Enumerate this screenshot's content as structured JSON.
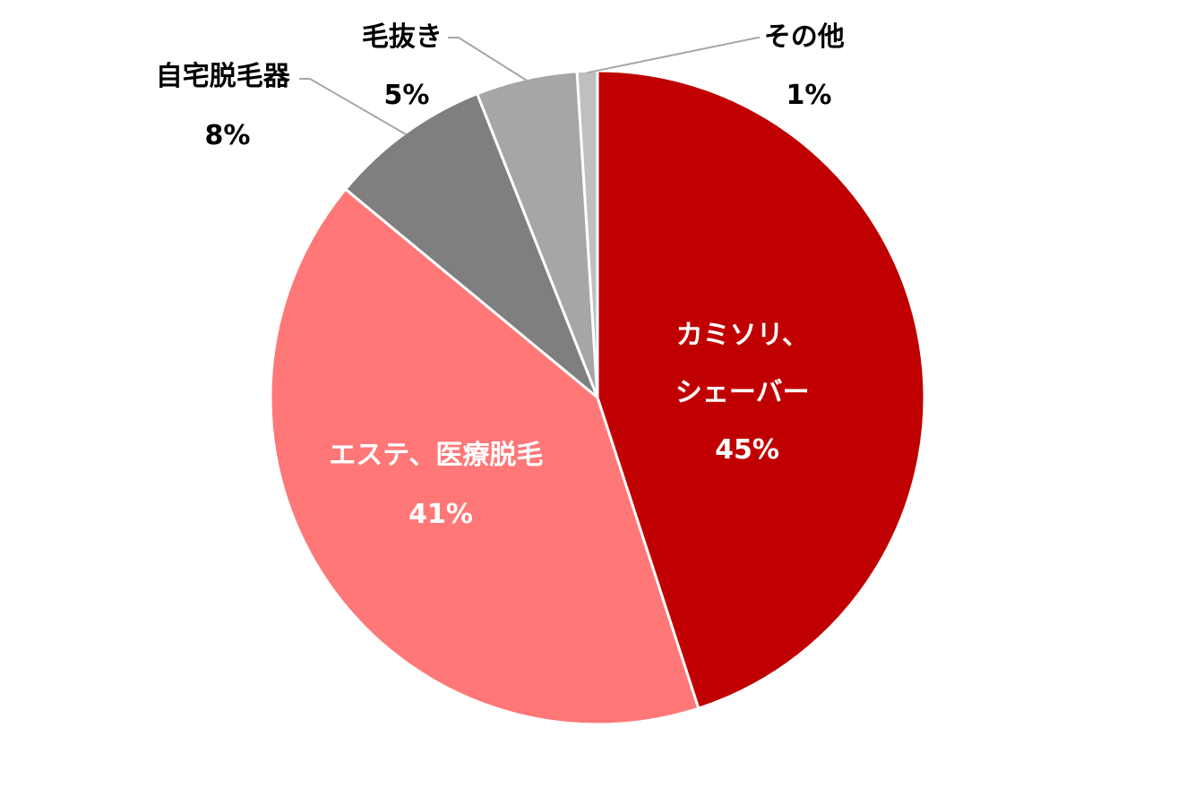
{
  "chart_data": {
    "type": "pie",
    "slices": [
      {
        "label": [
          "カミソリ、",
          "シェーバー"
        ],
        "value": 45,
        "value_label": "45%",
        "color": "#C00000"
      },
      {
        "label": [
          "エステ、医療脱毛"
        ],
        "value": 41,
        "value_label": "41%",
        "color": "#FF7777"
      },
      {
        "label": [
          "自宅脱毛器"
        ],
        "value": 8,
        "value_label": "8%",
        "color": "#7F7F7F"
      },
      {
        "label": [
          "毛抜き"
        ],
        "value": 5,
        "value_label": "5%",
        "color": "#A6A6A6"
      },
      {
        "label": [
          "その他"
        ],
        "value": 1,
        "value_label": "1%",
        "color": "#BFBFBF"
      }
    ],
    "start_angle": "12 o'clock",
    "direction": "clockwise",
    "legend": "none"
  }
}
